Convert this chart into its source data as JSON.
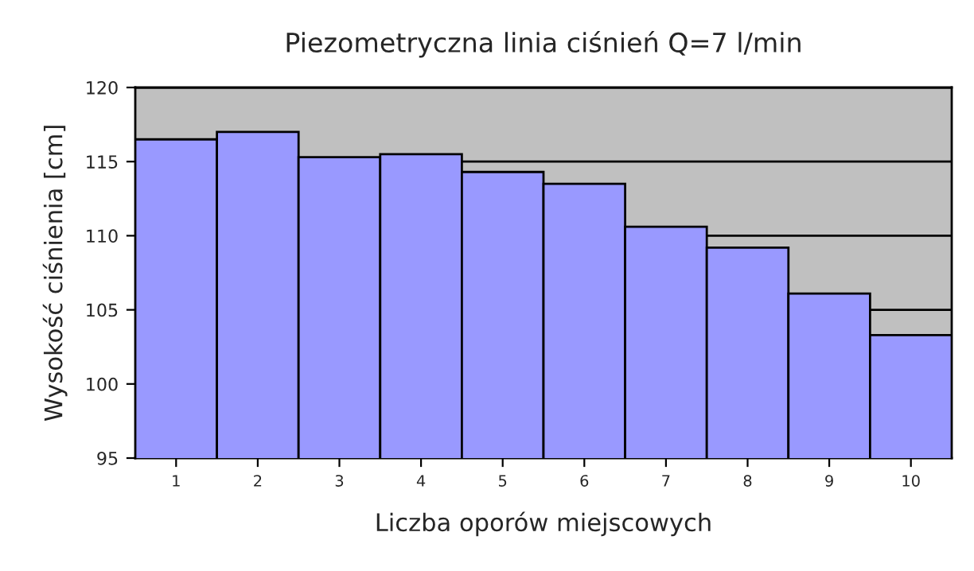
{
  "chart_data": {
    "type": "bar",
    "title": "Piezometryczna linia ciśnień Q=7 l/min",
    "xlabel": "Liczba oporów miejscowych",
    "ylabel": "Wysokość ciśnienia [cm]",
    "categories": [
      "1",
      "2",
      "3",
      "4",
      "5",
      "6",
      "7",
      "8",
      "9",
      "10"
    ],
    "values": [
      116.5,
      117.0,
      115.3,
      115.5,
      114.3,
      113.5,
      110.6,
      109.2,
      106.1,
      103.3
    ],
    "color": "#9999ff",
    "ylim": [
      95,
      120
    ],
    "yticks": [
      95,
      100,
      105,
      110,
      115,
      120
    ],
    "grid": "y"
  }
}
